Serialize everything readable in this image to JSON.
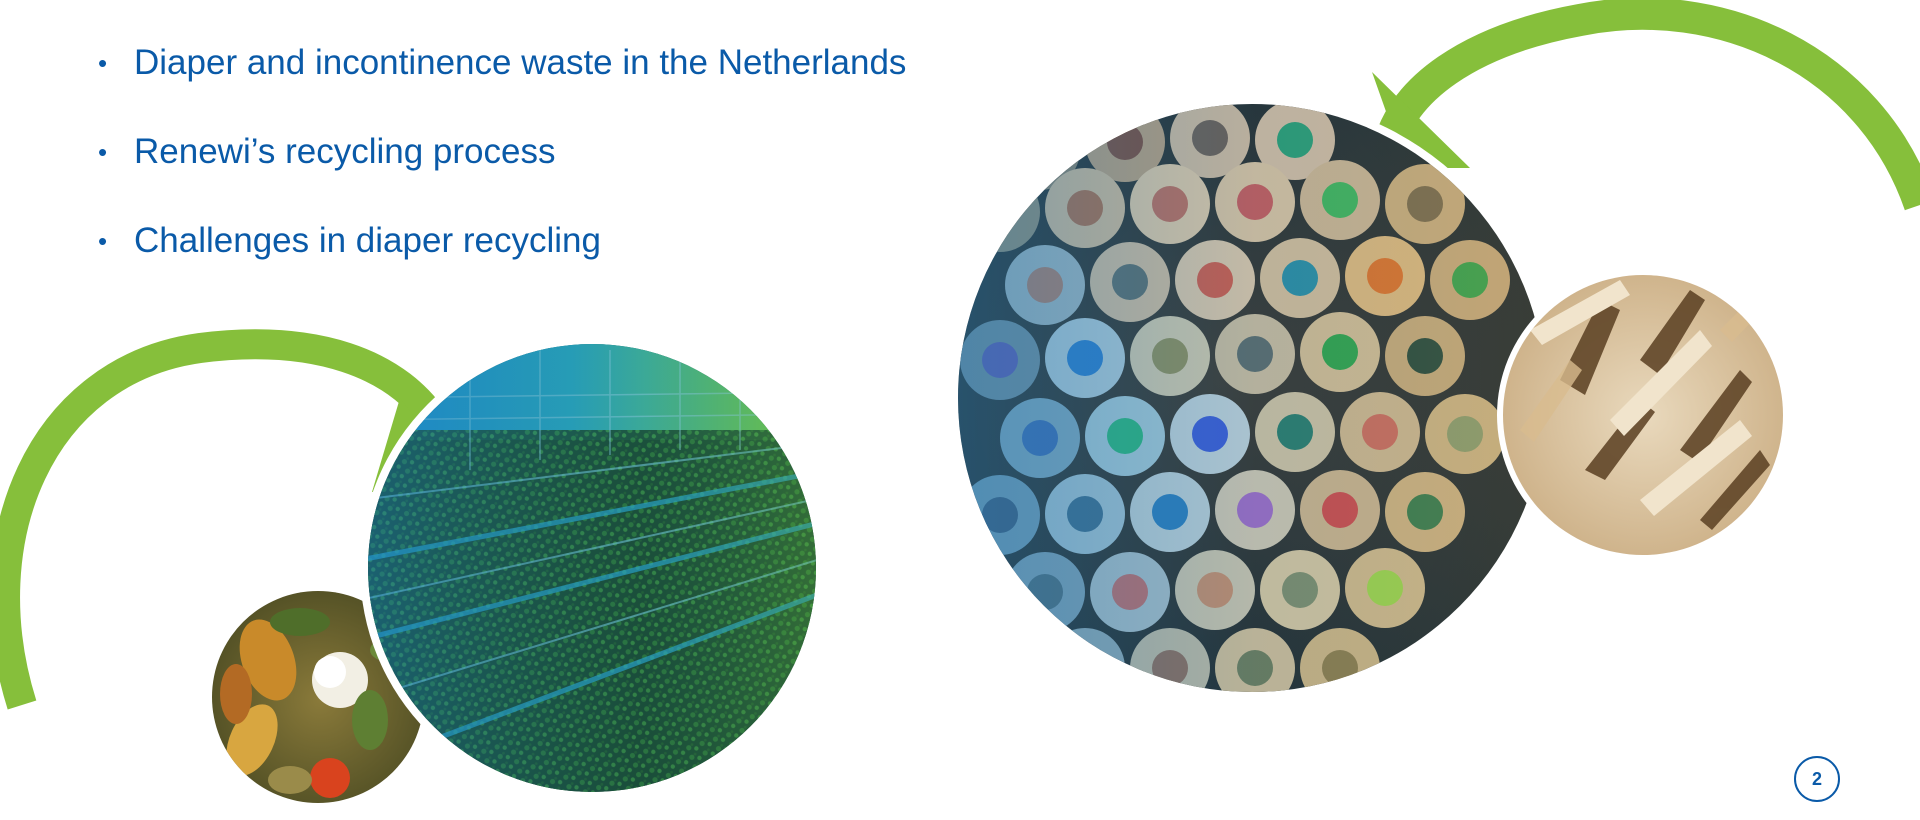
{
  "slide": {
    "bullets": [
      "Diaper and incontinence waste in the Netherlands",
      "Renewi’s recycling process",
      "Challenges in diaper recycling"
    ],
    "page_number": "2"
  },
  "colors": {
    "text_blue": "#0a5aa8",
    "arrow_green": "#86bf3b",
    "background": "#ffffff"
  },
  "images": [
    "food-waste-photo",
    "greenhouse-photo",
    "colored-pencils-photo",
    "wood-pallet-photo"
  ]
}
